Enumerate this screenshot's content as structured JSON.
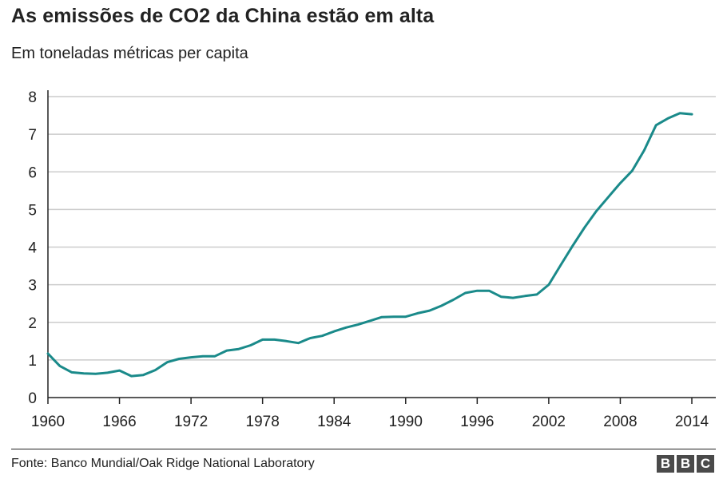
{
  "header": {
    "title": "As emissões de CO2 da China estão em alta",
    "subtitle": "Em toneladas métricas per capita"
  },
  "footer": {
    "source": "Fonte: Banco Mundial/Oak Ridge National Laboratory",
    "logo_letters": [
      "B",
      "B",
      "C"
    ]
  },
  "colors": {
    "line": "#1a8a8a",
    "grid": "#cccccc",
    "axis": "#222222"
  },
  "chart_data": {
    "type": "line",
    "title": "As emissões de CO2 da China estão em alta",
    "subtitle": "Em toneladas métricas per capita",
    "xlabel": "",
    "ylabel": "",
    "xlim": [
      1960,
      2014
    ],
    "ylim": [
      0,
      8
    ],
    "x_ticks": [
      1960,
      1966,
      1972,
      1978,
      1984,
      1990,
      1996,
      2002,
      2008,
      2014
    ],
    "y_ticks": [
      0,
      1,
      2,
      3,
      4,
      5,
      6,
      7,
      8
    ],
    "grid": "horizontal",
    "legend": "none",
    "series": [
      {
        "x": [
          1960,
          1961,
          1962,
          1963,
          1964,
          1965,
          1966,
          1967,
          1968,
          1969,
          1970,
          1971,
          1972,
          1973,
          1974,
          1975,
          1976,
          1977,
          1978,
          1979,
          1980,
          1981,
          1982,
          1983,
          1984,
          1985,
          1986,
          1987,
          1988,
          1989,
          1990,
          1991,
          1992,
          1993,
          1994,
          1995,
          1996,
          1997,
          1998,
          1999,
          2000,
          2001,
          2002,
          2003,
          2004,
          2005,
          2006,
          2007,
          2008,
          2009,
          2010,
          2011,
          2012,
          2013,
          2014
        ],
        "values": [
          1.17,
          0.84,
          0.67,
          0.64,
          0.63,
          0.66,
          0.72,
          0.57,
          0.6,
          0.73,
          0.94,
          1.03,
          1.07,
          1.1,
          1.1,
          1.25,
          1.29,
          1.39,
          1.54,
          1.54,
          1.5,
          1.45,
          1.58,
          1.64,
          1.76,
          1.86,
          1.94,
          2.04,
          2.14,
          2.15,
          2.15,
          2.24,
          2.31,
          2.44,
          2.6,
          2.78,
          2.84,
          2.84,
          2.68,
          2.65,
          2.7,
          2.74,
          3.0,
          3.52,
          4.03,
          4.52,
          4.96,
          5.33,
          5.7,
          6.03,
          6.57,
          7.24,
          7.42,
          7.56,
          7.53
        ]
      }
    ]
  }
}
